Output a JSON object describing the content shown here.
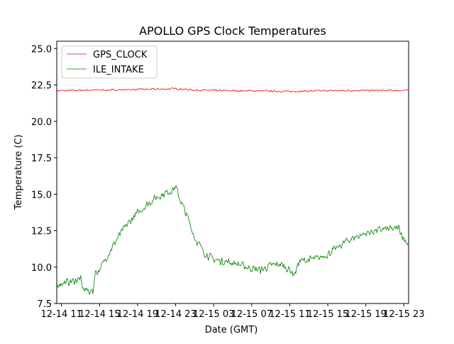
{
  "chart_data": {
    "type": "line",
    "title": "APOLLO GPS Clock Temperatures",
    "xlabel": "Date (GMT)",
    "ylabel": "Temperature (C)",
    "ylim": [
      7.5,
      25.5
    ],
    "xlim": [
      "12-14 10:30",
      "12-15 23:30"
    ],
    "x_ticks": [
      "12-14 11",
      "12-14 15",
      "12-14 19",
      "12-14 23",
      "12-15 03",
      "12-15 07",
      "12-15 11",
      "12-15 15",
      "12-15 19",
      "12-15 23"
    ],
    "y_ticks": [
      "7.5",
      "10.0",
      "12.5",
      "15.0",
      "17.5",
      "20.0",
      "22.5",
      "25.0"
    ],
    "grid": false,
    "legend_position": "upper-left",
    "series": [
      {
        "name": "GPS_CLOCK",
        "color": "#ff0000",
        "x": [
          "12-14 10:30",
          "12-14 12:00",
          "12-14 14:00",
          "12-14 16:00",
          "12-14 18:00",
          "12-14 20:00",
          "12-14 22:00",
          "12-14 23:00",
          "12-15 00:00",
          "12-15 01:00",
          "12-15 03:00",
          "12-15 05:00",
          "12-15 07:00",
          "12-15 09:00",
          "12-15 11:00",
          "12-15 13:00",
          "12-15 15:00",
          "12-15 17:00",
          "12-15 19:00",
          "12-15 21:00",
          "12-15 23:30"
        ],
        "y": [
          22.1,
          22.12,
          22.15,
          22.15,
          22.18,
          22.2,
          22.22,
          22.25,
          22.2,
          22.15,
          22.12,
          22.1,
          22.1,
          22.08,
          22.05,
          22.08,
          22.1,
          22.12,
          22.12,
          22.12,
          22.12
        ]
      },
      {
        "name": "ILE_INTAKE",
        "color": "#008000",
        "x": [
          "12-14 10:30",
          "12-14 11:00",
          "12-14 12:00",
          "12-14 13:00",
          "12-14 13:10",
          "12-14 13:40",
          "12-14 14:20",
          "12-14 14:30",
          "12-14 15:00",
          "12-14 16:00",
          "12-14 17:00",
          "12-14 18:00",
          "12-14 19:00",
          "12-14 20:00",
          "12-14 21:00",
          "12-14 22:00",
          "12-14 22:40",
          "12-14 23:00",
          "12-14 23:30",
          "12-15 00:30",
          "12-15 01:00",
          "12-15 02:00",
          "12-15 03:00",
          "12-15 04:00",
          "12-15 05:00",
          "12-15 06:00",
          "12-15 07:00",
          "12-15 08:00",
          "12-15 09:00",
          "12-15 10:00",
          "12-15 11:00",
          "12-15 11:30",
          "12-15 12:00",
          "12-15 13:00",
          "12-15 14:00",
          "12-15 15:00",
          "12-15 16:00",
          "12-15 17:00",
          "12-15 18:00",
          "12-15 19:00",
          "12-15 20:00",
          "12-15 21:00",
          "12-15 22:00",
          "12-15 22:30",
          "12-15 23:00",
          "12-15 23:30"
        ],
        "y": [
          8.8,
          8.9,
          9.0,
          9.2,
          8.6,
          8.4,
          8.3,
          9.6,
          9.8,
          11.0,
          12.1,
          13.0,
          13.7,
          14.3,
          14.8,
          15.1,
          15.3,
          15.5,
          14.6,
          13.0,
          12.0,
          11.0,
          10.5,
          10.4,
          10.3,
          10.1,
          9.9,
          9.8,
          10.1,
          10.2,
          9.8,
          9.5,
          10.4,
          10.5,
          10.6,
          10.9,
          11.3,
          11.8,
          12.1,
          12.3,
          12.5,
          12.6,
          12.6,
          12.7,
          11.9,
          11.6
        ]
      }
    ]
  }
}
